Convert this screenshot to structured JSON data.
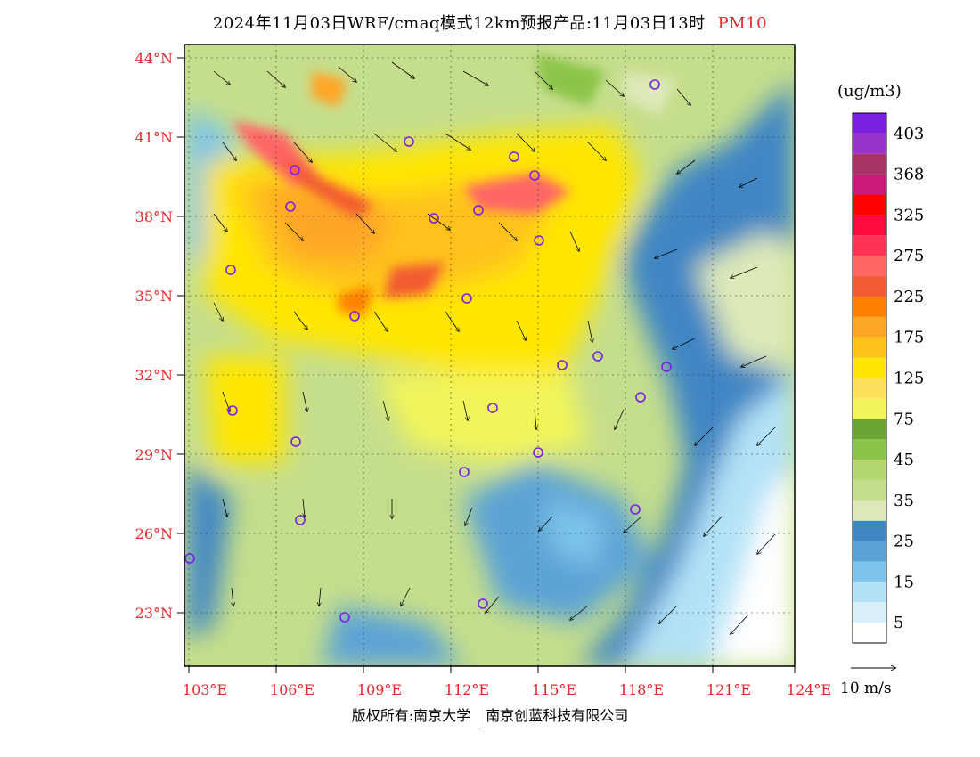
{
  "title": {
    "main": "2024年11月03日WRF/cmaq模式12km预报产品:11月03日13时",
    "pollutant": "PM10"
  },
  "colorbar": {
    "unit": "(ug/m3)",
    "colors": [
      "#ffffff",
      "#d9f0fb",
      "#b3e2f7",
      "#7cc4ea",
      "#5ba3d6",
      "#3f86c4",
      "#dde9b8",
      "#c5de8c",
      "#b3d66e",
      "#8cc44a",
      "#6aa533",
      "#f2f55a",
      "#fde15a",
      "#ffe600",
      "#ffc21a",
      "#ffa526",
      "#ff7f00",
      "#f25c33",
      "#ff6666",
      "#ff3355",
      "#ff0a3c",
      "#ff0000",
      "#c91a7a",
      "#aa3366",
      "#9933cc",
      "#7b1fe0"
    ],
    "labels": [
      "5",
      "15",
      "25",
      "35",
      "45",
      "75",
      "125",
      "175",
      "225",
      "275",
      "325",
      "368",
      "403"
    ]
  },
  "axes": {
    "lat_labels": [
      "44°N",
      "41°N",
      "38°N",
      "35°N",
      "32°N",
      "29°N",
      "26°N",
      "23°N"
    ],
    "lon_labels": [
      "103°E",
      "106°E",
      "109°E",
      "112°E",
      "115°E",
      "118°E",
      "121°E",
      "124°E"
    ]
  },
  "wind_legend": {
    "label": "10 m/s"
  },
  "footer": {
    "left": "版权所有:南京大学",
    "right": "南京创蓝科技有限公司"
  },
  "map": {
    "land_base_color": "#c5de8c",
    "ocean_color": "#3f86c4",
    "station_marker_color": "#7b1fe0"
  }
}
